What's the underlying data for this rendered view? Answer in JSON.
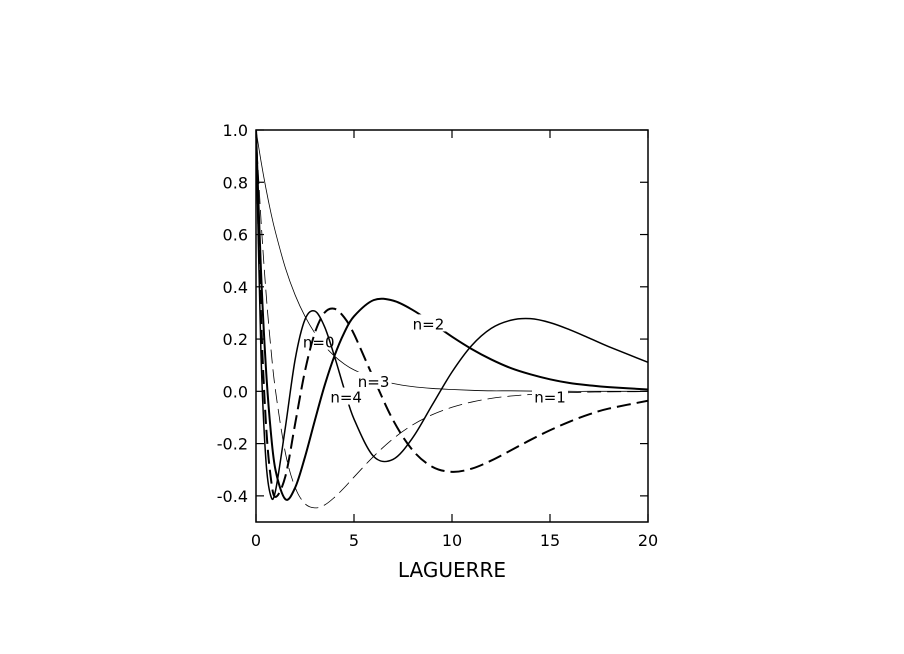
{
  "chart_data": {
    "type": "line",
    "x_label": "LAGUERRE",
    "x": [
      0,
      0.25,
      0.5,
      0.75,
      1,
      1.5,
      2,
      2.5,
      3,
      3.5,
      4,
      4.5,
      5,
      6,
      7,
      8,
      9,
      10,
      11,
      12,
      13,
      14,
      15,
      16,
      17,
      18,
      20
    ],
    "series": [
      {
        "name": "n=0",
        "color": "#000000",
        "width": 0.8,
        "dash": false,
        "label_at": [
          3.2,
          0.19
        ],
        "values": [
          1,
          0.883,
          0.779,
          0.687,
          0.607,
          0.472,
          0.368,
          0.287,
          0.223,
          0.174,
          0.135,
          0.105,
          0.082,
          0.05,
          0.03,
          0.018,
          0.011,
          0.007,
          0.004,
          0.002,
          0.002,
          0.001,
          0.001,
          0,
          0,
          0,
          0
        ]
      },
      {
        "name": "n=1",
        "color": "#000000",
        "width": 0.8,
        "dash": true,
        "label_at": [
          15,
          -0.02
        ],
        "values": [
          1,
          0.662,
          0.389,
          0.172,
          0,
          -0.236,
          -0.368,
          -0.43,
          -0.446,
          -0.435,
          -0.406,
          -0.369,
          -0.328,
          -0.249,
          -0.181,
          -0.128,
          -0.089,
          -0.061,
          -0.041,
          -0.027,
          -0.018,
          -0.012,
          -0.008,
          -0.005,
          -0.003,
          -0.002,
          -0.001
        ]
      },
      {
        "name": "n=2",
        "color": "#000000",
        "width": 2,
        "dash": false,
        "label_at": [
          8.8,
          0.26
        ],
        "values": [
          1,
          0.469,
          0.097,
          -0.15,
          -0.303,
          -0.413,
          -0.368,
          -0.251,
          -0.112,
          0.022,
          0.135,
          0.224,
          0.287,
          0.349,
          0.347,
          0.311,
          0.261,
          0.209,
          0.162,
          0.122,
          0.089,
          0.065,
          0.046,
          0.032,
          0.023,
          0.016,
          0.007
        ]
      },
      {
        "name": "n=3",
        "color": "#000000",
        "width": 2,
        "dash": true,
        "label_at": [
          6,
          0.04
        ],
        "values": [
          1,
          0.301,
          -0.114,
          -0.328,
          -0.404,
          -0.325,
          -0.123,
          0.078,
          0.223,
          0.301,
          0.316,
          0.283,
          0.219,
          0.05,
          -0.111,
          -0.226,
          -0.289,
          -0.308,
          -0.296,
          -0.265,
          -0.226,
          -0.186,
          -0.149,
          -0.116,
          -0.088,
          -0.066,
          -0.036
        ]
      },
      {
        "name": "n=4",
        "color": "#000000",
        "width": 1.5,
        "dash": false,
        "label_at": [
          4.6,
          -0.02
        ],
        "values": [
          1,
          0.156,
          -0.258,
          -0.399,
          -0.379,
          -0.137,
          0.123,
          0.275,
          0.307,
          0.247,
          0.135,
          0.009,
          -0.106,
          -0.249,
          -0.26,
          -0.177,
          -0.051,
          0.074,
          0.175,
          0.241,
          0.272,
          0.278,
          0.263,
          0.236,
          0.204,
          0.171,
          0.111
        ]
      }
    ],
    "xlim": [
      0,
      20
    ],
    "xticks": [
      0,
      5,
      10,
      15,
      20
    ],
    "ylim": [
      -0.5,
      1.0
    ],
    "yticks": [
      {
        "value": -0.4,
        "label": "-0.4"
      },
      {
        "value": -0.2,
        "label": "-0.2"
      },
      {
        "value": 0,
        "label": "0.0"
      },
      {
        "value": 0.2,
        "label": "0.2"
      },
      {
        "value": 0.4,
        "label": "0.4"
      },
      {
        "value": 0.6,
        "label": "0.6"
      },
      {
        "value": 0.8,
        "label": "0.8"
      },
      {
        "value": 1.0,
        "label": "1.0"
      }
    ],
    "grid": false
  }
}
